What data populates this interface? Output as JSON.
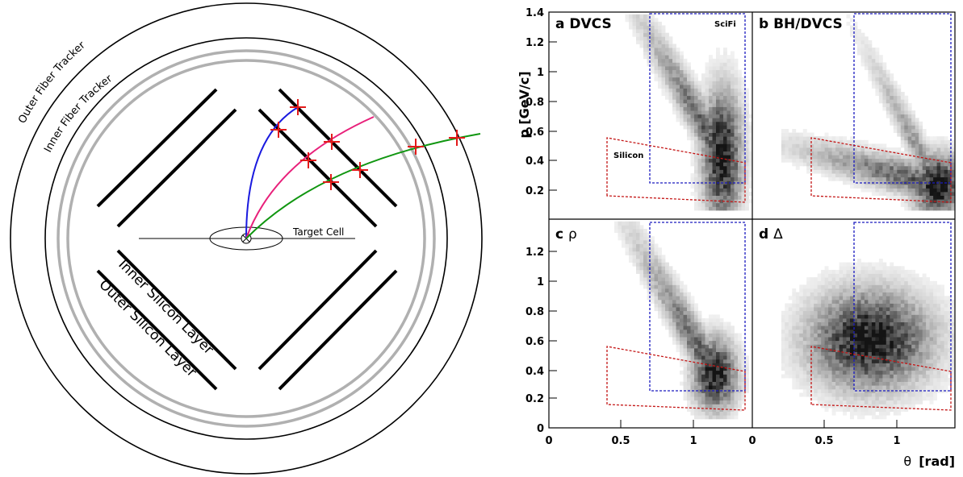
{
  "detector": {
    "outer_fiber_label": "Outer Fiber Tracker",
    "inner_fiber_label": "Inner Fiber Tracker",
    "inner_silicon_label": "Inner Silicon Layer",
    "outer_silicon_label": "Outer Silicon Layer",
    "target_label": "Target Cell",
    "track_colors": [
      "#1a1adf",
      "#e8207a",
      "#109610"
    ],
    "hit_color": "#e31a1a"
  },
  "plots": {
    "ylabel": "p [GeV/c]",
    "xlabel_symbol": "θ",
    "xlabel_unit": "[rad]",
    "sci_label": "SciFi",
    "si_label": "Silicon",
    "box_colors": {
      "scifi": "#1a1abf",
      "silicon": "#c41616"
    },
    "panels": [
      {
        "letter": "a",
        "name": "DVCS"
      },
      {
        "letter": "b",
        "name": "BH/DVCS"
      },
      {
        "letter": "c",
        "name": "ρ"
      },
      {
        "letter": "d",
        "name": "Δ"
      }
    ],
    "yticks_top": [
      "1.4",
      "1.2",
      "1",
      "0.8",
      "0.6",
      "0.4",
      "0.2"
    ],
    "yticks_bottom": [
      "1.2",
      "1",
      "0.8",
      "0.6",
      "0.4",
      "0.2",
      "0"
    ],
    "xticks": [
      "0",
      "0.5",
      "1",
      "0",
      "0.5",
      "1"
    ]
  },
  "chart_data": {
    "type": "heatmap",
    "xlabel": "θ [rad]",
    "ylabel": "p [GeV/c]",
    "xlim": [
      0,
      1.4
    ],
    "ylim": [
      0,
      1.4
    ],
    "acceptance_regions": {
      "SciFi": {
        "x": [
          0.7,
          1.35
        ],
        "y": [
          0.25,
          1.4
        ]
      },
      "Silicon": {
        "polygon": [
          [
            0.4,
            0.16
          ],
          [
            0.4,
            0.55
          ],
          [
            1.35,
            0.38
          ],
          [
            1.35,
            0.12
          ]
        ]
      }
    },
    "panels": [
      {
        "name": "a DVCS",
        "peak": {
          "theta": 1.18,
          "p": 0.42
        }
      },
      {
        "name": "b BH/DVCS",
        "peak": {
          "theta": 1.27,
          "p": 0.22
        }
      },
      {
        "name": "c ρ",
        "peak": {
          "theta": 1.13,
          "p": 0.35
        }
      },
      {
        "name": "d Δ",
        "peak": {
          "theta": 0.8,
          "p": 0.58
        }
      }
    ]
  }
}
